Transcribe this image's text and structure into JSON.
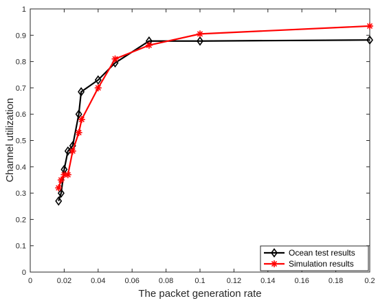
{
  "chart_data": {
    "type": "line",
    "xlabel": "The packet generation rate",
    "ylabel": "Channel utilization",
    "xlim": [
      0,
      0.2
    ],
    "ylim": [
      0,
      1
    ],
    "xticks": [
      0,
      0.02,
      0.04,
      0.06,
      0.08,
      0.1,
      0.12,
      0.14,
      0.16,
      0.18,
      0.2
    ],
    "yticks": [
      0,
      0.1,
      0.2,
      0.3,
      0.4,
      0.5,
      0.6,
      0.7,
      0.8,
      0.9,
      1
    ],
    "xtick_labels": [
      "0",
      "0.02",
      "0.04",
      "0.06",
      "0.08",
      "0.1",
      "0.12",
      "0.14",
      "0.16",
      "0.18",
      "0.2"
    ],
    "ytick_labels": [
      "0",
      "0.1",
      "0.2",
      "0.3",
      "0.4",
      "0.5",
      "0.6",
      "0.7",
      "0.8",
      "0.9",
      "1"
    ],
    "grid": false,
    "legend_position": "bottom-right",
    "series": [
      {
        "name": "Ocean test results",
        "color": "#000000",
        "marker": "diamond",
        "x": [
          0.0167,
          0.0182,
          0.02,
          0.0222,
          0.025,
          0.0286,
          0.03,
          0.04,
          0.05,
          0.07,
          0.1,
          0.2
        ],
        "y": [
          0.27,
          0.3,
          0.39,
          0.46,
          0.48,
          0.6,
          0.685,
          0.73,
          0.795,
          0.878,
          0.878,
          0.882
        ]
      },
      {
        "name": "Simulation results",
        "color": "#ff0000",
        "marker": "asterisk",
        "x": [
          0.0167,
          0.0182,
          0.02,
          0.0222,
          0.025,
          0.0286,
          0.0303,
          0.04,
          0.05,
          0.07,
          0.1,
          0.2
        ],
        "y": [
          0.32,
          0.35,
          0.37,
          0.37,
          0.46,
          0.53,
          0.58,
          0.7,
          0.81,
          0.862,
          0.905,
          0.935
        ]
      }
    ]
  }
}
